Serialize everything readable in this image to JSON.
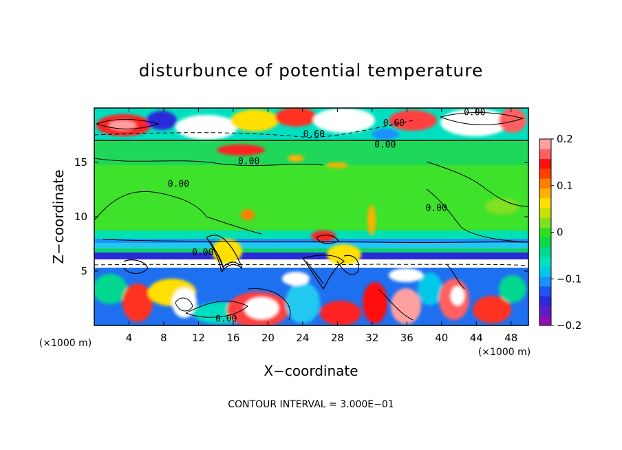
{
  "chart_data": {
    "type": "heatmap",
    "title": "disturbunce of potential temperature",
    "xlabel": "X−coordinate",
    "ylabel": "Z−coordinate",
    "x_unit": "(×1000 m)",
    "z_unit": "(×1000 m)",
    "x_ticks": [
      4,
      8,
      12,
      16,
      20,
      24,
      28,
      32,
      36,
      40,
      44,
      48
    ],
    "y_ticks": [
      5,
      10,
      15
    ],
    "xlim": [
      0,
      50
    ],
    "ylim": [
      0,
      20
    ],
    "contour_interval_text": "CONTOUR INTERVAL = 3.000E−01",
    "colorbar": {
      "range": [
        -0.2,
        0.2
      ],
      "tick_values": [
        0.2,
        0.1,
        0,
        -0.1,
        -0.2
      ],
      "tick_labels": [
        "0.2",
        "0.1",
        "0",
        "−0.1",
        "−0.2"
      ],
      "colors": [
        "#8c10b0",
        "#5a1fc8",
        "#2a2ad8",
        "#1f55f0",
        "#1e90ff",
        "#00c8e8",
        "#00e0c0",
        "#00d890",
        "#10d848",
        "#30e020",
        "#80e020",
        "#c8e000",
        "#ffe000",
        "#ffb000",
        "#ff8000",
        "#ff4000",
        "#ff1010",
        "#ff6060",
        "#ffa0a0"
      ]
    },
    "contour_labels": [
      {
        "text": "0.00",
        "x": 43.8,
        "z": 19.6
      },
      {
        "text": "0.60",
        "x": 34.5,
        "z": 18.6
      },
      {
        "text": "0.60",
        "x": 25.3,
        "z": 17.6
      },
      {
        "text": "0.00",
        "x": 33.5,
        "z": 16.6
      },
      {
        "text": "0.00",
        "x": 17.8,
        "z": 15.1
      },
      {
        "text": "0.00",
        "x": 9.7,
        "z": 13.0
      },
      {
        "text": "0.00",
        "x": 39.4,
        "z": 10.8
      },
      {
        "text": "0.00",
        "x": 12.5,
        "z": 6.7
      },
      {
        "text": "0.00",
        "x": 15.2,
        "z": 0.6
      }
    ]
  }
}
